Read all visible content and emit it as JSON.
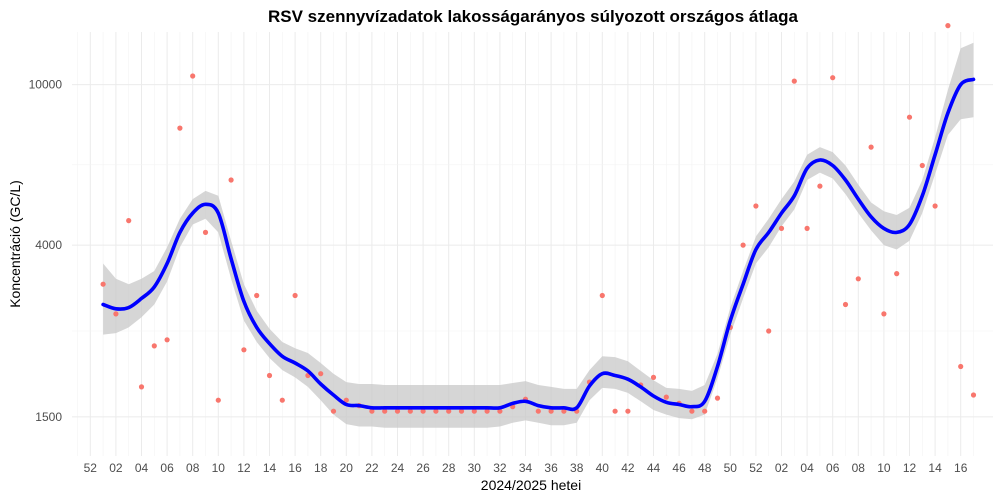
{
  "chart_data": {
    "type": "scatter",
    "title": "RSV szennyvízadatok lakosságarányos súlyozott országos átlaga",
    "xlabel": "2024/2025 hetei",
    "ylabel": "Koncentráció (GC/L)",
    "y_scale": "log",
    "ylim": [
      1200,
      13500
    ],
    "yticks": [
      1500,
      4000,
      10000
    ],
    "ytick_labels": [
      "1500",
      "4000",
      "10000"
    ],
    "x_categories": [
      "51",
      "52",
      "01",
      "02",
      "03",
      "04",
      "05",
      "06",
      "07",
      "08",
      "09",
      "10",
      "11",
      "12",
      "13",
      "14",
      "15",
      "16",
      "17",
      "18",
      "19",
      "20",
      "21",
      "22",
      "23",
      "24",
      "25",
      "26",
      "27",
      "28",
      "29",
      "30",
      "31",
      "32",
      "33",
      "34",
      "35",
      "36",
      "37",
      "38",
      "39",
      "40",
      "41",
      "42",
      "43",
      "44",
      "45",
      "46",
      "47",
      "48",
      "49",
      "50",
      "51",
      "52",
      "01",
      "02",
      "03",
      "04",
      "05",
      "06",
      "07",
      "08",
      "09",
      "10",
      "11",
      "12",
      "13",
      "14",
      "15",
      "16",
      "17"
    ],
    "xtick_labels": [
      "52",
      "02",
      "04",
      "06",
      "08",
      "10",
      "12",
      "14",
      "16",
      "18",
      "20",
      "22",
      "24",
      "26",
      "28",
      "30",
      "32",
      "34",
      "36",
      "38",
      "40",
      "42",
      "44",
      "46",
      "48",
      "50",
      "52",
      "02",
      "04",
      "06",
      "08",
      "10",
      "12",
      "14",
      "16"
    ],
    "grid": true,
    "legend": "none",
    "colors": {
      "points": "#f8766d",
      "trend": "#0000ff",
      "band": "#c8c8c8"
    },
    "series": [
      {
        "kind": "points",
        "week_index": [
          2,
          3,
          4,
          5,
          6,
          7,
          8,
          9,
          10,
          11,
          12,
          13,
          14,
          15,
          16,
          17,
          18,
          19,
          20,
          21,
          22,
          23,
          24,
          25,
          26,
          27,
          28,
          29,
          30,
          31,
          32,
          33,
          34,
          35,
          36,
          37,
          38,
          39,
          40,
          41,
          42,
          43,
          44,
          45,
          46,
          47,
          48,
          49,
          50,
          51,
          52,
          53,
          54,
          55,
          56,
          57,
          58,
          59,
          60,
          61,
          62,
          63,
          64,
          65,
          66,
          67,
          68,
          69,
          70
        ],
        "values": [
          3200,
          2700,
          4600,
          1780,
          2250,
          2330,
          7800,
          10500,
          4300,
          1650,
          5800,
          2200,
          3000,
          1900,
          1650,
          3000,
          1900,
          1920,
          1550,
          1650,
          1600,
          1550,
          1550,
          1550,
          1550,
          1550,
          1550,
          1550,
          1550,
          1550,
          1550,
          1550,
          1590,
          1660,
          1550,
          1550,
          1550,
          1550,
          1830,
          3000,
          1550,
          1550,
          1800,
          1880,
          1680,
          1620,
          1550,
          1550,
          1670,
          2500,
          4000,
          5000,
          2450,
          4400,
          10200,
          4400,
          5600,
          10400,
          2850,
          3300,
          7000,
          2700,
          3400,
          8300,
          6300,
          5000,
          14000,
          2000,
          1700
        ]
      },
      {
        "kind": "trend",
        "week_index": [
          2,
          3,
          4,
          5,
          6,
          7,
          8,
          9,
          10,
          11,
          12,
          13,
          14,
          15,
          16,
          17,
          18,
          19,
          20,
          21,
          22,
          23,
          24,
          25,
          26,
          27,
          28,
          29,
          30,
          31,
          32,
          33,
          34,
          35,
          36,
          37,
          38,
          39,
          40,
          41,
          42,
          43,
          44,
          45,
          46,
          47,
          48,
          49,
          50,
          51,
          52,
          53,
          54,
          55,
          56,
          57,
          58,
          59,
          60,
          61,
          62,
          63,
          64,
          65,
          66,
          67,
          68,
          69,
          70
        ],
        "values": [
          2850,
          2780,
          2800,
          2950,
          3150,
          3600,
          4300,
          4800,
          5050,
          4800,
          3700,
          2900,
          2500,
          2280,
          2120,
          2040,
          1950,
          1810,
          1700,
          1610,
          1600,
          1580,
          1580,
          1580,
          1580,
          1580,
          1580,
          1580,
          1580,
          1580,
          1580,
          1580,
          1620,
          1640,
          1600,
          1580,
          1580,
          1580,
          1790,
          1920,
          1900,
          1860,
          1780,
          1690,
          1630,
          1610,
          1590,
          1640,
          2000,
          2600,
          3200,
          3900,
          4300,
          4800,
          5300,
          6200,
          6500,
          6300,
          5800,
          5200,
          4700,
          4400,
          4300,
          4500,
          5300,
          6700,
          8500,
          10000,
          10300
        ],
        "lower": [
          2400,
          2420,
          2500,
          2650,
          2850,
          3250,
          3950,
          4500,
          4650,
          4300,
          3300,
          2600,
          2300,
          2100,
          1960,
          1880,
          1780,
          1650,
          1520,
          1440,
          1420,
          1420,
          1410,
          1410,
          1410,
          1410,
          1410,
          1410,
          1410,
          1410,
          1410,
          1420,
          1450,
          1470,
          1450,
          1430,
          1430,
          1450,
          1650,
          1770,
          1760,
          1720,
          1640,
          1560,
          1520,
          1490,
          1480,
          1520,
          1870,
          2400,
          2950,
          3600,
          3950,
          4450,
          4900,
          5800,
          6050,
          5850,
          5350,
          4800,
          4350,
          4000,
          3900,
          4100,
          4800,
          6000,
          7500,
          8200,
          8300
        ],
        "upper": [
          3600,
          3300,
          3200,
          3300,
          3450,
          3950,
          4650,
          5200,
          5450,
          5300,
          4100,
          3200,
          2750,
          2480,
          2300,
          2220,
          2160,
          2040,
          1920,
          1830,
          1810,
          1810,
          1800,
          1800,
          1800,
          1800,
          1800,
          1800,
          1800,
          1800,
          1800,
          1800,
          1820,
          1840,
          1800,
          1780,
          1760,
          1760,
          1960,
          2120,
          2110,
          2060,
          1950,
          1850,
          1770,
          1760,
          1740,
          1800,
          2150,
          2800,
          3450,
          4200,
          4650,
          5200,
          5750,
          6700,
          7000,
          6800,
          6300,
          5650,
          5100,
          4850,
          4750,
          4950,
          5800,
          7400,
          9700,
          12300,
          12700
        ]
      }
    ]
  }
}
